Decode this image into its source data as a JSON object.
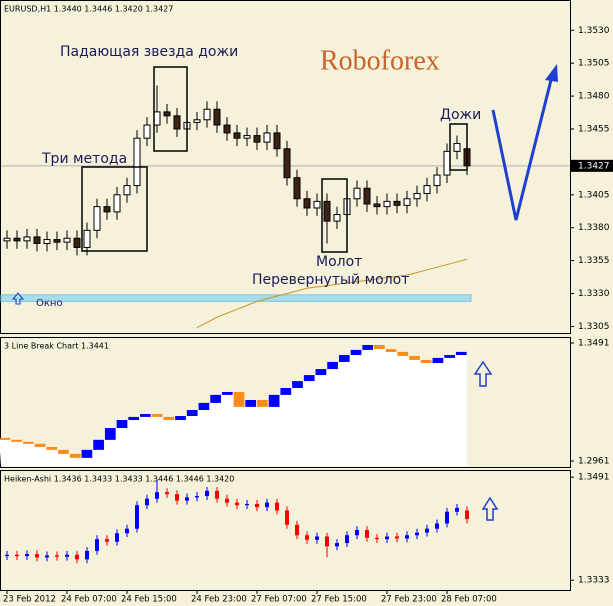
{
  "chart_data": [
    {
      "type": "candlestick",
      "title": "EURUSD,H1  1.3440 1.3446 1.3420 1.3427",
      "open": [
        1.337,
        1.3372,
        1.337,
        1.3373,
        1.3368,
        1.3371,
        1.3369,
        1.3372,
        1.3365,
        1.3378,
        1.3396,
        1.3392,
        1.3405,
        1.3412,
        1.3448,
        1.3458,
        1.3468,
        1.3465,
        1.3455,
        1.346,
        1.3462,
        1.347,
        1.3458,
        1.3452,
        1.3448,
        1.345,
        1.3445,
        1.3452,
        1.344,
        1.3418,
        1.3402,
        1.3395,
        1.34,
        1.3385,
        1.339,
        1.3402,
        1.341,
        1.3398,
        1.3396,
        1.34,
        1.3397,
        1.3402,
        1.3406,
        1.3412,
        1.342,
        1.3438,
        1.344
      ],
      "high": [
        1.3378,
        1.3378,
        1.3379,
        1.3379,
        1.3377,
        1.3377,
        1.3378,
        1.3378,
        1.3384,
        1.3402,
        1.3402,
        1.3411,
        1.3418,
        1.3454,
        1.3464,
        1.3488,
        1.3474,
        1.3471,
        1.3466,
        1.3468,
        1.3476,
        1.3476,
        1.3464,
        1.3458,
        1.3456,
        1.3456,
        1.3458,
        1.3458,
        1.3446,
        1.3424,
        1.3408,
        1.3406,
        1.3406,
        1.3396,
        1.3408,
        1.3416,
        1.3416,
        1.3404,
        1.3406,
        1.3406,
        1.3408,
        1.3412,
        1.3418,
        1.3426,
        1.3444,
        1.345,
        1.3446
      ],
      "low": [
        1.3364,
        1.3364,
        1.3364,
        1.3362,
        1.3362,
        1.3363,
        1.3363,
        1.3359,
        1.3359,
        1.3372,
        1.3386,
        1.3386,
        1.3399,
        1.3406,
        1.3442,
        1.3452,
        1.3459,
        1.3449,
        1.3449,
        1.3454,
        1.3456,
        1.3452,
        1.3446,
        1.3442,
        1.3442,
        1.3439,
        1.3439,
        1.3434,
        1.3412,
        1.3396,
        1.3389,
        1.3389,
        1.3368,
        1.3379,
        1.3384,
        1.3396,
        1.3392,
        1.339,
        1.339,
        1.3391,
        1.3391,
        1.3396,
        1.34,
        1.3406,
        1.3414,
        1.3432,
        1.342
      ],
      "close": [
        1.3372,
        1.337,
        1.3373,
        1.3368,
        1.3371,
        1.3369,
        1.3372,
        1.3365,
        1.3378,
        1.3396,
        1.3392,
        1.3405,
        1.3412,
        1.3448,
        1.3458,
        1.3468,
        1.3465,
        1.3455,
        1.346,
        1.3462,
        1.347,
        1.3458,
        1.3452,
        1.3448,
        1.345,
        1.3445,
        1.3452,
        1.344,
        1.3418,
        1.3402,
        1.3395,
        1.34,
        1.3385,
        1.339,
        1.3402,
        1.341,
        1.3398,
        1.3396,
        1.34,
        1.3397,
        1.3402,
        1.3406,
        1.3412,
        1.342,
        1.3438,
        1.3444,
        1.3427
      ],
      "up_color": "#ffffff",
      "down_color": "#3c2415",
      "wick_color": "#000000",
      "ma": {
        "color": "#c8961e",
        "values": [
          null,
          null,
          null,
          null,
          null,
          null,
          null,
          null,
          null,
          null,
          null,
          null,
          null,
          null,
          null,
          null,
          null,
          null,
          null,
          1.3304,
          1.3308,
          1.3312,
          1.3315,
          1.3318,
          1.3321,
          1.3324,
          1.3326,
          1.3328,
          1.333,
          1.3332,
          1.3334,
          1.3335,
          1.3336,
          1.3337,
          1.3338,
          1.3339,
          1.334,
          1.3341,
          1.3342,
          1.3343,
          1.3344,
          1.3346,
          1.3348,
          1.335,
          1.3352,
          1.3354,
          1.3356
        ]
      },
      "window": [
        1.3324,
        1.3329
      ],
      "last_price": 1.3427,
      "annotations": [
        "Roboforex",
        "Падающая звезда дожи",
        "Три метода",
        "Дожи",
        "Молот",
        "Перевернутый молот",
        "Окно"
      ],
      "xlim": [
        -0.7,
        56.3
      ],
      "ylim": [
        1.33,
        1.3553
      ],
      "yticks": [
        1.3305,
        {
          "value": 1.333,
          "label": "1.3330"
        },
        1.3355,
        {
          "value": 1.338,
          "label": "1.3380"
        },
        1.3405,
        1.3455,
        {
          "value": 1.348,
          "label": "1.3480"
        },
        1.3505,
        {
          "value": 1.353,
          "label": "1.3530"
        }
      ],
      "xticks": [
        {
          "value": 0,
          "label": "23 Feb 2012"
        },
        {
          "value": 6,
          "label": "24 Feb 07:00"
        },
        {
          "value": 12,
          "label": "24 Feb 15:00"
        },
        {
          "value": 19,
          "label": "24 Feb 23:00"
        },
        {
          "value": 25,
          "label": "27 Feb 07:00"
        },
        {
          "value": 31,
          "label": "27 Feb 15:00"
        },
        {
          "value": 38,
          "label": "27 Feb 23:00"
        },
        {
          "value": 44,
          "label": "28 Feb 07:00"
        }
      ]
    },
    {
      "type": "line_break",
      "title": "3 Line Break Chart 1.3441",
      "open": [
        1.3065,
        1.3056,
        1.3047,
        1.3038,
        1.3024,
        1.3011,
        1.2993,
        1.2975,
        1.3011,
        1.3056,
        1.3109,
        1.3145,
        1.3159,
        1.3172,
        1.3159,
        1.3145,
        1.3163,
        1.319,
        1.3222,
        1.3258,
        1.3271,
        1.3204,
        1.3235,
        1.3204,
        1.3258,
        1.3289,
        1.332,
        1.3347,
        1.3374,
        1.3406,
        1.3437,
        1.346,
        1.3482,
        1.3464,
        1.3451,
        1.3433,
        1.3415,
        1.3401,
        1.3424,
        1.3437
      ],
      "close": [
        1.3056,
        1.3047,
        1.3038,
        1.3024,
        1.3011,
        1.2993,
        1.2975,
        1.3011,
        1.3056,
        1.3109,
        1.3145,
        1.3159,
        1.3172,
        1.3159,
        1.3145,
        1.3163,
        1.319,
        1.3222,
        1.3258,
        1.3271,
        1.3204,
        1.3235,
        1.3204,
        1.3258,
        1.3289,
        1.332,
        1.3347,
        1.3374,
        1.3406,
        1.3437,
        1.346,
        1.3482,
        1.3464,
        1.3451,
        1.3433,
        1.3415,
        1.3401,
        1.3424,
        1.3437,
        1.3451
      ],
      "up_color": "#0000ff",
      "down_color": "#ff8c1a",
      "xlim": [
        -0.427,
        48.29
      ],
      "ylim": [
        1.2934,
        1.3518
      ],
      "yticks": [
        1.2961,
        1.3491
      ]
    },
    {
      "type": "heiken_ashi",
      "title": "Heiken-Ashi 1.3436 1.3433 1.3433 1.3446 1.3446 1.3420",
      "open": [
        1.337,
        1.3372,
        1.337,
        1.3373,
        1.3368,
        1.3371,
        1.3369,
        1.3372,
        1.3365,
        1.3378,
        1.3396,
        1.3392,
        1.3405,
        1.3412,
        1.3448,
        1.3458,
        1.3468,
        1.3465,
        1.3455,
        1.346,
        1.3462,
        1.347,
        1.3458,
        1.3452,
        1.3448,
        1.345,
        1.3445,
        1.3452,
        1.344,
        1.3418,
        1.3402,
        1.3395,
        1.34,
        1.3385,
        1.339,
        1.3402,
        1.341,
        1.3398,
        1.3396,
        1.34,
        1.3397,
        1.3402,
        1.3406,
        1.3412,
        1.342,
        1.3438,
        1.344
      ],
      "high": [
        1.3378,
        1.3378,
        1.3379,
        1.3379,
        1.3377,
        1.3377,
        1.3378,
        1.3378,
        1.3384,
        1.3402,
        1.3402,
        1.3411,
        1.3418,
        1.3454,
        1.3464,
        1.3488,
        1.3474,
        1.3471,
        1.3466,
        1.3468,
        1.3476,
        1.3476,
        1.3464,
        1.3458,
        1.3456,
        1.3456,
        1.3458,
        1.3458,
        1.3446,
        1.3424,
        1.3408,
        1.3406,
        1.3406,
        1.3396,
        1.3408,
        1.3416,
        1.3416,
        1.3404,
        1.3406,
        1.3406,
        1.3408,
        1.3412,
        1.3418,
        1.3426,
        1.3444,
        1.345,
        1.3446
      ],
      "low": [
        1.3364,
        1.3364,
        1.3364,
        1.3362,
        1.3362,
        1.3363,
        1.3363,
        1.3359,
        1.3359,
        1.3372,
        1.3386,
        1.3386,
        1.3399,
        1.3406,
        1.3442,
        1.3452,
        1.3459,
        1.3449,
        1.3449,
        1.3454,
        1.3456,
        1.3452,
        1.3446,
        1.3442,
        1.3442,
        1.3439,
        1.3439,
        1.3434,
        1.3412,
        1.3396,
        1.3389,
        1.3389,
        1.3368,
        1.3379,
        1.3384,
        1.3396,
        1.3392,
        1.339,
        1.339,
        1.3391,
        1.3391,
        1.3396,
        1.34,
        1.3406,
        1.3414,
        1.3432,
        1.342
      ],
      "close": [
        1.3372,
        1.337,
        1.3373,
        1.3368,
        1.3371,
        1.3369,
        1.3372,
        1.3365,
        1.3378,
        1.3396,
        1.3392,
        1.3405,
        1.3412,
        1.3448,
        1.3458,
        1.3468,
        1.3465,
        1.3455,
        1.346,
        1.3462,
        1.347,
        1.3458,
        1.3452,
        1.3448,
        1.345,
        1.3445,
        1.3452,
        1.344,
        1.3418,
        1.3402,
        1.3395,
        1.34,
        1.3385,
        1.339,
        1.3402,
        1.341,
        1.3398,
        1.3396,
        1.34,
        1.3397,
        1.3402,
        1.3406,
        1.3412,
        1.342,
        1.3438,
        1.3444,
        1.3427
      ],
      "up_color": "#0000ff",
      "down_color": "#ff0000",
      "xlim": [
        -0.7,
        56.3
      ],
      "ylim": [
        1.3318,
        1.3502
      ],
      "yticks": [
        1.3333,
        1.3491
      ]
    }
  ]
}
